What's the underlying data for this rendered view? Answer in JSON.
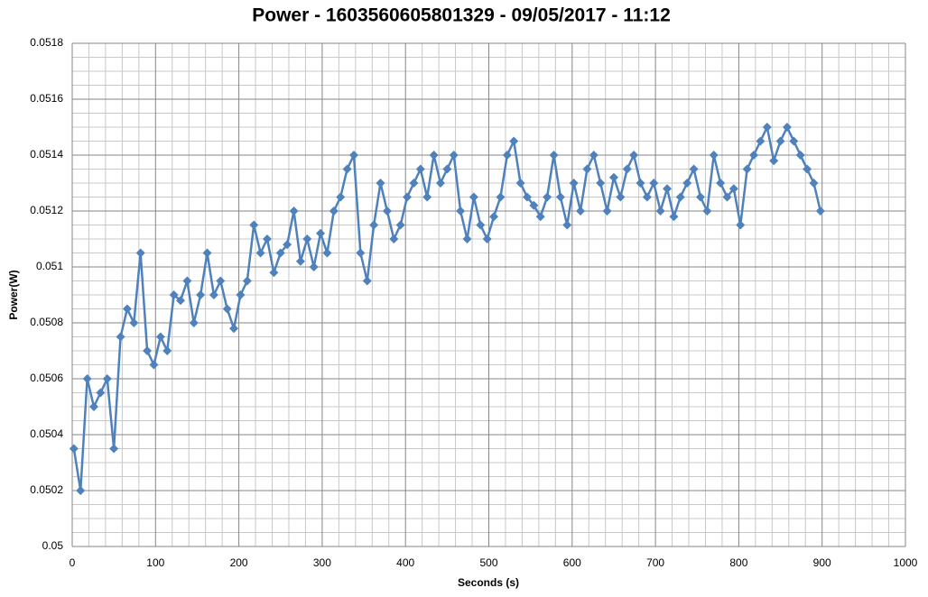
{
  "chart_data": {
    "type": "line",
    "title": "Power - 1603560605801329 - 09/05/2017 - 11:12",
    "x_label": "Seconds (s)",
    "y_label": "Power(W)",
    "xlim": [
      0,
      1000
    ],
    "xticks": [
      0,
      100,
      200,
      300,
      400,
      500,
      600,
      700,
      800,
      900,
      1000
    ],
    "ylim": [
      0.05,
      0.0518
    ],
    "yticks": [
      0.05,
      0.0502,
      0.0504,
      0.0506,
      0.0508,
      0.051,
      0.0512,
      0.0514,
      0.0516,
      0.0518
    ],
    "grid": true,
    "marker": "diamond",
    "series": [
      {
        "color": "#4f81bd",
        "x": [
          2,
          10,
          18,
          26,
          34,
          42,
          50,
          58,
          66,
          74,
          82,
          90,
          98,
          106,
          114,
          122,
          130,
          138,
          146,
          154,
          162,
          170,
          178,
          186,
          194,
          202,
          210,
          218,
          226,
          234,
          242,
          250,
          258,
          266,
          274,
          282,
          290,
          298,
          306,
          314,
          322,
          330,
          338,
          346,
          354,
          362,
          370,
          378,
          386,
          394,
          402,
          410,
          418,
          426,
          434,
          442,
          450,
          458,
          466,
          474,
          482,
          490,
          498,
          506,
          514,
          522,
          530,
          538,
          546,
          554,
          562,
          570,
          578,
          586,
          594,
          602,
          610,
          618,
          626,
          634,
          642,
          650,
          658,
          666,
          674,
          682,
          690,
          698,
          706,
          714,
          722,
          730,
          738,
          746,
          754,
          762,
          770,
          778,
          786,
          794,
          802,
          810,
          818,
          826,
          834,
          842,
          850,
          858,
          866,
          874,
          882,
          890,
          898
        ],
        "values": [
          0.05035,
          0.0502,
          0.0506,
          0.0505,
          0.05055,
          0.0506,
          0.05035,
          0.05075,
          0.05085,
          0.0508,
          0.05105,
          0.0507,
          0.05065,
          0.05075,
          0.0507,
          0.0509,
          0.05088,
          0.05095,
          0.0508,
          0.0509,
          0.05105,
          0.0509,
          0.05095,
          0.05085,
          0.05078,
          0.0509,
          0.05095,
          0.05115,
          0.05105,
          0.0511,
          0.05098,
          0.05105,
          0.05108,
          0.0512,
          0.05102,
          0.0511,
          0.051,
          0.05112,
          0.05105,
          0.0512,
          0.05125,
          0.05135,
          0.0514,
          0.05105,
          0.05095,
          0.05115,
          0.0513,
          0.0512,
          0.0511,
          0.05115,
          0.05125,
          0.0513,
          0.05135,
          0.05125,
          0.0514,
          0.0513,
          0.05135,
          0.0514,
          0.0512,
          0.0511,
          0.05125,
          0.05115,
          0.0511,
          0.05118,
          0.05125,
          0.0514,
          0.05145,
          0.0513,
          0.05125,
          0.05122,
          0.05118,
          0.05125,
          0.0514,
          0.05125,
          0.05115,
          0.0513,
          0.0512,
          0.05135,
          0.0514,
          0.0513,
          0.0512,
          0.05132,
          0.05125,
          0.05135,
          0.0514,
          0.0513,
          0.05125,
          0.0513,
          0.0512,
          0.05128,
          0.05118,
          0.05125,
          0.0513,
          0.05135,
          0.05125,
          0.0512,
          0.0514,
          0.0513,
          0.05125,
          0.05128,
          0.05115,
          0.05135,
          0.0514,
          0.05145,
          0.0515,
          0.05138,
          0.05145,
          0.0515,
          0.05145,
          0.0514,
          0.05135,
          0.0513,
          0.0512
        ]
      }
    ]
  }
}
